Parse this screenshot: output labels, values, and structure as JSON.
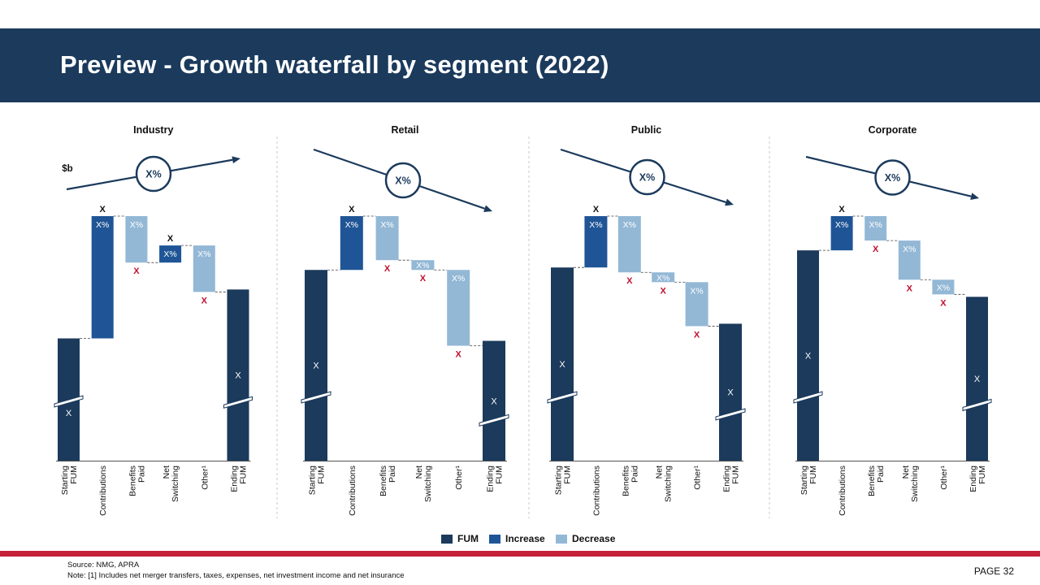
{
  "header": {
    "title": "Preview - Growth waterfall by segment (2022)"
  },
  "legend": [
    {
      "name": "FUM",
      "color": "#1b3a5c"
    },
    {
      "name": "Increase",
      "color": "#1f5596"
    },
    {
      "name": "Decrease",
      "color": "#93b8d6"
    }
  ],
  "footer": {
    "source": "Source: NMG,  APRA",
    "note": "Note: [1] Includes net merger transfers, taxes, expenses, net investment income and net insurance",
    "page": "PAGE  32"
  },
  "colors": {
    "fum": "#1b3a5c",
    "increase": "#1f5596",
    "decrease": "#93b8d6",
    "negative_label": "#c0102e",
    "header": "#1b3a5c"
  },
  "chart_data": [
    {
      "type": "bar",
      "title": "Industry",
      "unit_label": "$b",
      "trend": {
        "direction": "up",
        "label": "X%"
      },
      "categories": [
        "Starting FUM",
        "Contributions",
        "Benefits Paid",
        "Net Switching",
        "Other¹",
        "Ending FUM"
      ],
      "bar_types": [
        "fum",
        "increase",
        "decrease",
        "increase",
        "decrease",
        "fum"
      ],
      "values": [
        50,
        50,
        -19,
        7,
        -19,
        70
      ],
      "inner_labels": [
        "X",
        "X%",
        "X%",
        "X%",
        "X%",
        "X"
      ],
      "outer_labels": [
        "",
        "X",
        "X",
        "X",
        "X",
        ""
      ],
      "axis_break": true
    },
    {
      "type": "bar",
      "title": "Retail",
      "trend": {
        "direction": "down",
        "label": "X%"
      },
      "categories": [
        "Starting FUM",
        "Contributions",
        "Benefits Paid",
        "Net Switching",
        "Other¹",
        "Ending FUM"
      ],
      "bar_types": [
        "fum",
        "increase",
        "decrease",
        "decrease",
        "decrease",
        "fum"
      ],
      "values": [
        78,
        22,
        -18,
        -4,
        -31,
        49
      ],
      "inner_labels": [
        "X",
        "X%",
        "X%",
        "X%",
        "X%",
        "X"
      ],
      "outer_labels": [
        "",
        "X",
        "X",
        "X",
        "X",
        ""
      ],
      "axis_break": true
    },
    {
      "type": "bar",
      "title": "Public",
      "trend": {
        "direction": "down",
        "label": "X%"
      },
      "categories": [
        "Starting FUM",
        "Contributions",
        "Benefits Paid",
        "Net Switching",
        "Other¹",
        "Ending FUM"
      ],
      "bar_types": [
        "fum",
        "increase",
        "decrease",
        "decrease",
        "decrease",
        "fum"
      ],
      "values": [
        79,
        21,
        -23,
        -4,
        -18,
        56
      ],
      "inner_labels": [
        "X",
        "X%",
        "X%",
        "X%",
        "X%",
        "X"
      ],
      "outer_labels": [
        "",
        "X",
        "X",
        "X",
        "X",
        ""
      ],
      "axis_break": true
    },
    {
      "type": "bar",
      "title": "Corporate",
      "trend": {
        "direction": "down",
        "label": "X%"
      },
      "categories": [
        "Starting FUM",
        "Contributions",
        "Benefits Paid",
        "Net Switching",
        "Other¹",
        "Ending FUM"
      ],
      "bar_types": [
        "fum",
        "increase",
        "decrease",
        "decrease",
        "decrease",
        "fum"
      ],
      "values": [
        86,
        14,
        -10,
        -16,
        -6,
        67
      ],
      "inner_labels": [
        "X",
        "X%",
        "X%",
        "X%",
        "X%",
        "X"
      ],
      "outer_labels": [
        "",
        "X",
        "X",
        "X",
        "X",
        ""
      ],
      "axis_break": true
    }
  ]
}
